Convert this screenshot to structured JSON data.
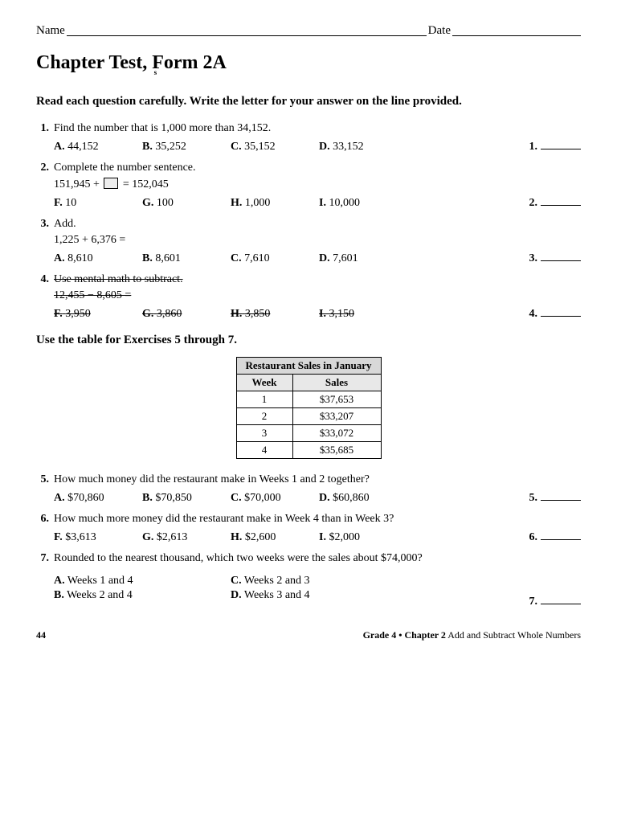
{
  "header": {
    "name_label": "Name",
    "date_label": "Date"
  },
  "title": "Chapter Test, Form 2A",
  "title_sub": "s",
  "instructions": "Read each question carefully. Write the letter for your answer on the line provided.",
  "q1": {
    "num": "1.",
    "text": "Find the number that is 1,000 more than 34,152.",
    "a": {
      "l": "A.",
      "v": "44,152"
    },
    "b": {
      "l": "B.",
      "v": "35,252"
    },
    "c": {
      "l": "C.",
      "v": "35,152"
    },
    "d": {
      "l": "D.",
      "v": "33,152"
    },
    "ans": "1."
  },
  "q2": {
    "num": "2.",
    "text": "Complete the number sentence.",
    "expr_pre": "151,945 + ",
    "expr_post": " = 152,045",
    "a": {
      "l": "F.",
      "v": "10"
    },
    "b": {
      "l": "G.",
      "v": "100"
    },
    "c": {
      "l": "H.",
      "v": "1,000"
    },
    "d": {
      "l": "I.",
      "v": "10,000"
    },
    "ans": "2."
  },
  "q3": {
    "num": "3.",
    "text": "Add.",
    "expr": "1,225 + 6,376 =",
    "a": {
      "l": "A.",
      "v": "8,610"
    },
    "b": {
      "l": "B.",
      "v": "8,601"
    },
    "c": {
      "l": "C.",
      "v": "7,610"
    },
    "d": {
      "l": "D.",
      "v": "7,601"
    },
    "ans": "3."
  },
  "q4": {
    "num": "4.",
    "text": "Use mental math to subtract.",
    "expr": "12,455 − 8,605 =",
    "a": {
      "l": "F.",
      "v": "3,950"
    },
    "b": {
      "l": "G.",
      "v": "3,860"
    },
    "c": {
      "l": "H.",
      "v": "3,850"
    },
    "d": {
      "l": "I.",
      "v": "3,150"
    },
    "ans": "4."
  },
  "table_note": "Use the table for Exercises 5 through 7.",
  "table": {
    "title": "Restaurant Sales in January",
    "columns": [
      "Week",
      "Sales"
    ],
    "rows": [
      [
        "1",
        "$37,653"
      ],
      [
        "2",
        "$33,207"
      ],
      [
        "3",
        "$33,072"
      ],
      [
        "4",
        "$35,685"
      ]
    ]
  },
  "q5": {
    "num": "5.",
    "text": "How much money did the restaurant make in Weeks 1 and 2 together?",
    "a": {
      "l": "A.",
      "v": "$70,860"
    },
    "b": {
      "l": "B.",
      "v": "$70,850"
    },
    "c": {
      "l": "C.",
      "v": "$70,000"
    },
    "d": {
      "l": "D.",
      "v": "$60,860"
    },
    "ans": "5."
  },
  "q6": {
    "num": "6.",
    "text": "How much more money did the restaurant make in Week 4 than in Week 3?",
    "a": {
      "l": "F.",
      "v": "$3,613"
    },
    "b": {
      "l": "G.",
      "v": "$2,613"
    },
    "c": {
      "l": "H.",
      "v": "$2,600"
    },
    "d": {
      "l": "I.",
      "v": "$2,000"
    },
    "ans": "6."
  },
  "q7": {
    "num": "7.",
    "text": "Rounded to the nearest thousand, which two weeks were the sales about $74,000?",
    "a": {
      "l": "A.",
      "v": "Weeks 1 and 4"
    },
    "b": {
      "l": "B.",
      "v": "Weeks 2 and 4"
    },
    "c": {
      "l": "C.",
      "v": "Weeks 2 and 3"
    },
    "d": {
      "l": "D.",
      "v": "Weeks 3 and 4"
    },
    "ans": "7."
  },
  "footer": {
    "page": "44",
    "grade": "Grade 4 • Chapter 2",
    "chapter_title": " Add and Subtract Whole Numbers"
  }
}
